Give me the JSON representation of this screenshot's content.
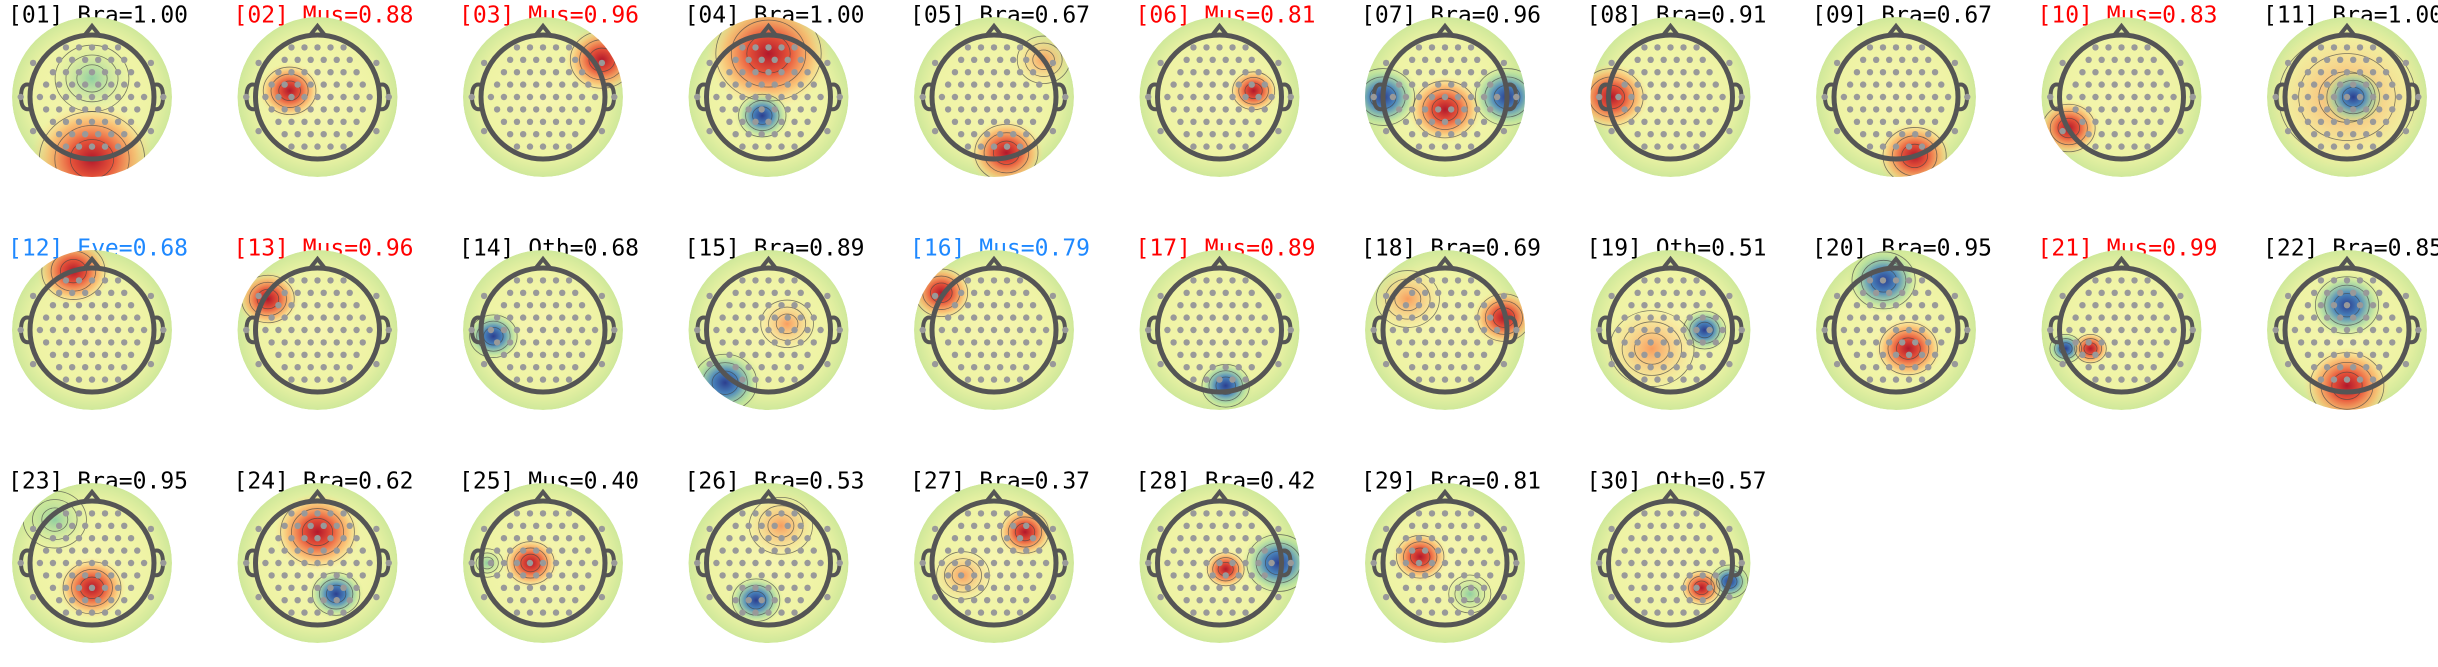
{
  "components": [
    {
      "label": "[01] Bra=1.00",
      "color": "#000000"
    },
    {
      "label": "[02] Mus=0.88",
      "color": "#ff0000"
    },
    {
      "label": "[03] Mus=0.96",
      "color": "#ff0000"
    },
    {
      "label": "[04] Bra=1.00",
      "color": "#000000"
    },
    {
      "label": "[05] Bra=0.67",
      "color": "#000000"
    },
    {
      "label": "[06] Mus=0.81",
      "color": "#ff0000"
    },
    {
      "label": "[07] Bra=0.96",
      "color": "#000000"
    },
    {
      "label": "[08] Bra=0.91",
      "color": "#000000"
    },
    {
      "label": "[09] Bra=0.67",
      "color": "#000000"
    },
    {
      "label": "[10] Mus=0.83",
      "color": "#ff0000"
    },
    {
      "label": "[11] Bra=1.00",
      "color": "#000000"
    },
    {
      "label": "[12] Eye=0.68",
      "color": "#1e88ff"
    },
    {
      "label": "[13] Mus=0.96",
      "color": "#ff0000"
    },
    {
      "label": "[14] Oth=0.68",
      "color": "#000000"
    },
    {
      "label": "[15] Bra=0.89",
      "color": "#000000"
    },
    {
      "label": "[16] Mus=0.79",
      "color": "#1e88ff"
    },
    {
      "label": "[17] Mus=0.89",
      "color": "#ff0000"
    },
    {
      "label": "[18] Bra=0.69",
      "color": "#000000"
    },
    {
      "label": "[19] Oth=0.51",
      "color": "#000000"
    },
    {
      "label": "[20] Bra=0.95",
      "color": "#000000"
    },
    {
      "label": "[21] Mus=0.99",
      "color": "#ff0000"
    },
    {
      "label": "[22] Bra=0.85",
      "color": "#000000"
    },
    {
      "label": "[23] Bra=0.95",
      "color": "#000000"
    },
    {
      "label": "[24] Bra=0.62",
      "color": "#000000"
    },
    {
      "label": "[25] Mus=0.40",
      "color": "#000000"
    },
    {
      "label": "[26] Bra=0.53",
      "color": "#000000"
    },
    {
      "label": "[27] Bra=0.37",
      "color": "#000000"
    },
    {
      "label": "[28] Bra=0.42",
      "color": "#000000"
    },
    {
      "label": "[29] Bra=0.81",
      "color": "#000000"
    },
    {
      "label": "[30] Oth=0.57",
      "color": "#000000"
    }
  ]
}
